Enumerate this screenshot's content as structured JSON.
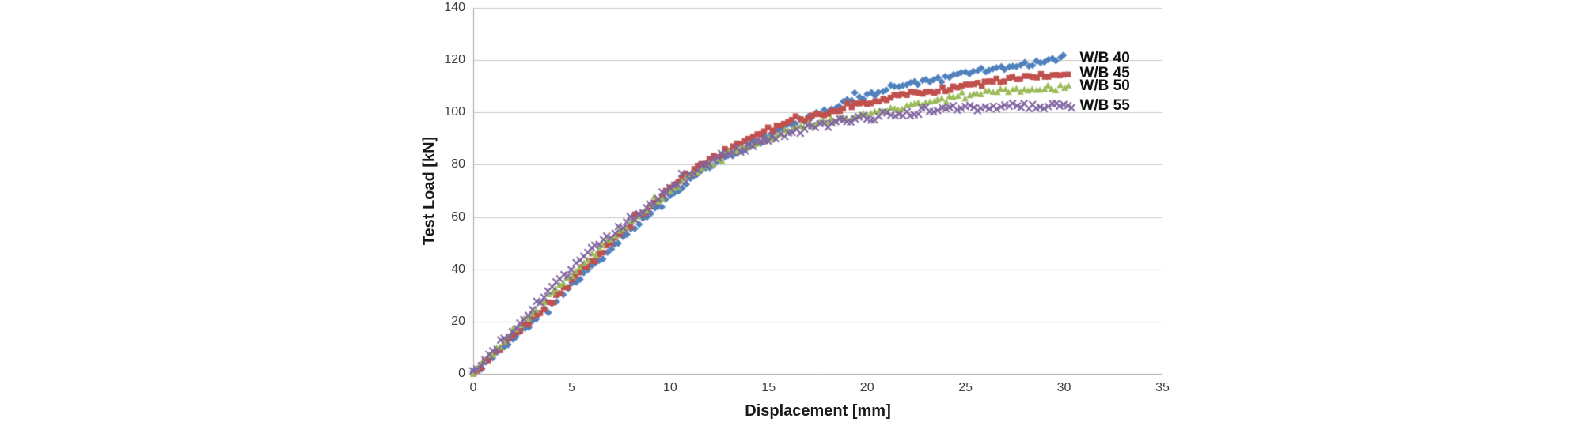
{
  "chart_data": {
    "type": "scatter",
    "title": "",
    "xlabel": "Displacement [mm]",
    "ylabel": "Test Load [kN]",
    "xlim": [
      0,
      35
    ],
    "ylim": [
      0,
      140
    ],
    "x_ticks": [
      0,
      5,
      10,
      15,
      20,
      25,
      30,
      35
    ],
    "y_ticks": [
      0,
      20,
      40,
      60,
      80,
      100,
      120,
      140
    ],
    "grid": "horizontal-only",
    "gridline_color": "#c9c9c9",
    "axis_color": "#a6a6a6",
    "background": "#ffffff",
    "legend_position": "end-of-series",
    "series": [
      {
        "name": "W/B 40",
        "marker": "diamond",
        "color": "#4F81BD",
        "end_x_mm": 30.1,
        "scatter_amp_kN": 0.9,
        "kN_by_mm": [
          0,
          6.5,
          13,
          20,
          27,
          34,
          41,
          48,
          55,
          61.5,
          68,
          74,
          79,
          83.5,
          87.5,
          91,
          95,
          98,
          101,
          104,
          106.5,
          108.5,
          110.5,
          112,
          113.5,
          115,
          116.3,
          117.3,
          118.3,
          119.5,
          120.5
        ]
      },
      {
        "name": "W/B 45",
        "marker": "square",
        "color": "#C0504D",
        "end_x_mm": 30.35,
        "scatter_amp_kN": 0.9,
        "kN_by_mm": [
          0,
          7,
          14,
          21,
          28,
          35.5,
          43,
          50,
          57,
          64,
          71,
          77,
          82,
          86,
          89.5,
          93,
          96,
          98,
          100,
          102,
          104,
          105.5,
          107,
          108,
          109,
          110.5,
          111.5,
          112.5,
          113.5,
          114.3,
          115
        ]
      },
      {
        "name": "W/B 50",
        "marker": "triangle",
        "color": "#9BBB59",
        "end_x_mm": 30.35,
        "scatter_amp_kN": 1.0,
        "kN_by_mm": [
          0,
          8,
          16,
          23.5,
          31,
          38,
          45,
          51.5,
          58,
          64,
          70,
          75.5,
          80,
          84,
          87,
          90,
          93,
          95,
          96.5,
          98,
          99,
          100.5,
          102,
          103.5,
          105,
          106.3,
          107.3,
          108.2,
          109,
          109.5,
          110
        ]
      },
      {
        "name": "W/B 55",
        "marker": "x",
        "color": "#8064A2",
        "end_x_mm": 30.4,
        "scatter_amp_kN": 1.25,
        "kN_by_mm": [
          0,
          8.5,
          17,
          25,
          33,
          40,
          47,
          53,
          59,
          65,
          71,
          76.5,
          81,
          84.5,
          87,
          89.5,
          92,
          94,
          95.5,
          97,
          98,
          99.3,
          100.2,
          100.8,
          101.3,
          101.7,
          102,
          102.2,
          102.3,
          102.4,
          102.5
        ]
      }
    ],
    "points_per_mm": 5
  }
}
